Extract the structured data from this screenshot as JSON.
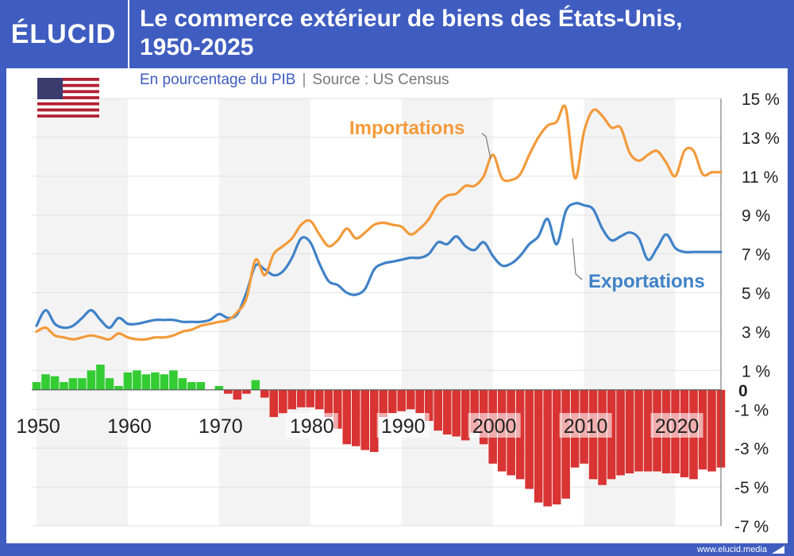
{
  "brand": {
    "logo": "ÉLUCID",
    "footer": "www.elucid.media"
  },
  "title": "Le commerce extérieur de biens des États-Unis, 1950-2025",
  "title_lines": [
    "Le commerce extérieur de biens des États-Unis,",
    "1950-2025"
  ],
  "subtitle": "En pourcentage du PIB",
  "source": "Source : US Census",
  "flag": "us-flag-icon",
  "colors": {
    "header": "#3f5cc0",
    "imports": "#f39a3a",
    "exports": "#3f82c8",
    "surplus": "#33cc33",
    "deficit": "#d93333"
  },
  "chart_data": [
    {
      "type": "line",
      "title": "Le commerce extérieur de biens des États-Unis, 1950-2025",
      "subtitle": "En pourcentage du PIB",
      "xlim": [
        1950,
        2025
      ],
      "ylim": [
        -7,
        15
      ],
      "y_ticks": [
        15,
        13,
        11,
        9,
        7,
        5,
        3,
        1,
        0,
        -1,
        -3,
        -5,
        -7
      ],
      "y_tick_labels": [
        "15 %",
        "13 %",
        "11 %",
        "9 %",
        "7 %",
        "5 %",
        "3 %",
        "1 %",
        "0",
        "-1 %",
        "-3 %",
        "-5 %",
        "-7 %"
      ],
      "x_ticks": [
        1950,
        1960,
        1970,
        1980,
        1990,
        2000,
        2010,
        2020
      ],
      "x_tick_labels": [
        "1950",
        "1960",
        "1970",
        "1980",
        "1990",
        "2000",
        "2010",
        "2020"
      ],
      "grid": true,
      "series": [
        {
          "name": "Importations",
          "color": "#f39a3a",
          "x": [
            1950,
            1951,
            1952,
            1953,
            1954,
            1955,
            1956,
            1957,
            1958,
            1959,
            1960,
            1961,
            1962,
            1963,
            1964,
            1965,
            1966,
            1967,
            1968,
            1969,
            1970,
            1971,
            1972,
            1973,
            1974,
            1975,
            1976,
            1977,
            1978,
            1979,
            1980,
            1981,
            1982,
            1983,
            1984,
            1985,
            1986,
            1987,
            1988,
            1989,
            1990,
            1991,
            1992,
            1993,
            1994,
            1995,
            1996,
            1997,
            1998,
            1999,
            2000,
            2001,
            2002,
            2003,
            2004,
            2005,
            2006,
            2007,
            2008,
            2009,
            2010,
            2011,
            2012,
            2013,
            2014,
            2015,
            2016,
            2017,
            2018,
            2019,
            2020,
            2021,
            2022,
            2023,
            2024,
            2025
          ],
          "values": [
            3.0,
            3.2,
            2.8,
            2.7,
            2.6,
            2.7,
            2.8,
            2.7,
            2.6,
            2.9,
            2.7,
            2.6,
            2.6,
            2.7,
            2.7,
            2.8,
            3.0,
            3.1,
            3.3,
            3.4,
            3.5,
            3.6,
            4.0,
            4.7,
            6.7,
            5.9,
            7.0,
            7.4,
            7.8,
            8.5,
            8.7,
            8.0,
            7.4,
            7.7,
            8.3,
            7.8,
            8.1,
            8.5,
            8.6,
            8.5,
            8.4,
            8.0,
            8.3,
            8.8,
            9.6,
            10.0,
            10.1,
            10.5,
            10.5,
            11.0,
            12.1,
            10.9,
            10.8,
            11.1,
            12.1,
            13.0,
            13.6,
            13.8,
            14.5,
            10.9,
            13.3,
            14.4,
            14.1,
            13.5,
            13.5,
            12.2,
            11.8,
            12.1,
            12.3,
            11.7,
            11.0,
            12.3,
            12.3,
            11.1,
            11.2,
            11.2
          ]
        },
        {
          "name": "Exportations",
          "color": "#3f82c8",
          "x": [
            1950,
            1951,
            1952,
            1953,
            1954,
            1955,
            1956,
            1957,
            1958,
            1959,
            1960,
            1961,
            1962,
            1963,
            1964,
            1965,
            1966,
            1967,
            1968,
            1969,
            1970,
            1971,
            1972,
            1973,
            1974,
            1975,
            1976,
            1977,
            1978,
            1979,
            1980,
            1981,
            1982,
            1983,
            1984,
            1985,
            1986,
            1987,
            1988,
            1989,
            1990,
            1991,
            1992,
            1993,
            1994,
            1995,
            1996,
            1997,
            1998,
            1999,
            2000,
            2001,
            2002,
            2003,
            2004,
            2005,
            2006,
            2007,
            2008,
            2009,
            2010,
            2011,
            2012,
            2013,
            2014,
            2015,
            2016,
            2017,
            2018,
            2019,
            2020,
            2021,
            2022,
            2023,
            2024,
            2025
          ],
          "values": [
            3.3,
            4.1,
            3.4,
            3.2,
            3.3,
            3.7,
            4.1,
            3.6,
            3.2,
            3.7,
            3.4,
            3.4,
            3.5,
            3.6,
            3.6,
            3.6,
            3.5,
            3.5,
            3.5,
            3.6,
            3.9,
            3.7,
            3.9,
            5.0,
            6.4,
            6.2,
            5.9,
            6.1,
            6.8,
            7.8,
            7.6,
            6.5,
            5.6,
            5.4,
            5.0,
            4.9,
            5.2,
            6.2,
            6.5,
            6.6,
            6.7,
            6.8,
            6.8,
            7.0,
            7.6,
            7.5,
            7.9,
            7.4,
            7.2,
            7.6,
            6.9,
            6.4,
            6.5,
            6.9,
            7.5,
            7.9,
            8.8,
            7.5,
            9.2,
            9.6,
            9.5,
            9.3,
            8.3,
            7.7,
            7.9,
            8.1,
            7.8,
            6.7,
            7.3,
            8.0,
            7.3,
            7.1,
            7.1,
            7.1,
            7.1,
            7.1
          ]
        }
      ],
      "annotations": [
        {
          "text": "Importations",
          "series": "Importations"
        },
        {
          "text": "Exportations",
          "series": "Exportations"
        }
      ]
    },
    {
      "type": "bar",
      "name": "Balance commerciale",
      "x": [
        1950,
        1951,
        1952,
        1953,
        1954,
        1955,
        1956,
        1957,
        1958,
        1959,
        1960,
        1961,
        1962,
        1963,
        1964,
        1965,
        1966,
        1967,
        1968,
        1969,
        1970,
        1971,
        1972,
        1973,
        1974,
        1975,
        1976,
        1977,
        1978,
        1979,
        1980,
        1981,
        1982,
        1983,
        1984,
        1985,
        1986,
        1987,
        1988,
        1989,
        1990,
        1991,
        1992,
        1993,
        1994,
        1995,
        1996,
        1997,
        1998,
        1999,
        2000,
        2001,
        2002,
        2003,
        2004,
        2005,
        2006,
        2007,
        2008,
        2009,
        2010,
        2011,
        2012,
        2013,
        2014,
        2015,
        2016,
        2017,
        2018,
        2019,
        2020,
        2021,
        2022,
        2023,
        2024,
        2025
      ],
      "values": [
        0.4,
        0.8,
        0.7,
        0.4,
        0.6,
        0.6,
        1.0,
        1.3,
        0.6,
        0.2,
        0.9,
        1.0,
        0.8,
        0.9,
        0.8,
        1.0,
        0.6,
        0.4,
        0.4,
        0.0,
        0.2,
        -0.2,
        -0.5,
        -0.2,
        0.5,
        -0.4,
        -1.4,
        -1.2,
        -1.0,
        -0.9,
        -0.9,
        -1.0,
        -1.4,
        -2.0,
        -2.8,
        -2.9,
        -3.1,
        -3.2,
        -1.4,
        -1.2,
        -1.1,
        -1.0,
        -1.2,
        -1.6,
        -2.1,
        -2.3,
        -2.4,
        -2.6,
        -2.2,
        -2.8,
        -3.8,
        -4.2,
        -4.4,
        -4.6,
        -5.1,
        -5.8,
        -6.0,
        -5.9,
        -5.6,
        -4.0,
        -3.8,
        -4.6,
        -4.9,
        -4.6,
        -4.4,
        -4.3,
        -4.2,
        -4.2,
        -4.2,
        -4.3,
        -4.3,
        -4.5,
        -4.6,
        -4.1,
        -4.2,
        -4.0
      ]
    }
  ]
}
